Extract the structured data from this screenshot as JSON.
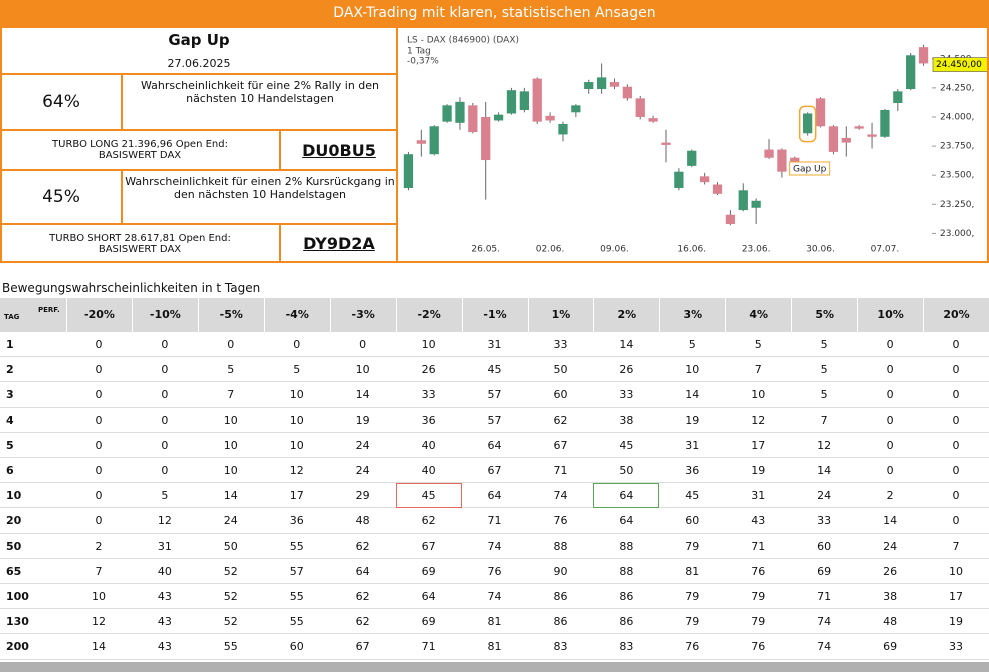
{
  "header": {
    "title": "DAX-Trading mit klaren, statistischen Ansagen"
  },
  "signal": {
    "title": "Gap Up",
    "date": "27.06.2025"
  },
  "long": {
    "probability": "64%",
    "text": "Wahrscheinlichkeit für eine 2% Rally in den nächsten 10 Handelstagen",
    "product": "TURBO LONG 21.396,96 Open End:",
    "underlying": "BASISWERT DAX",
    "code": "DU0BU5"
  },
  "short": {
    "probability": "45%",
    "text": "Wahrscheinlichkeit für einen 2% Kursrückgang in den nächsten 10 Handelstagen",
    "product": "TURBO SHORT 28.617,81 Open End:",
    "underlying": "BASISWERT DAX",
    "code": "DY9D2A"
  },
  "chart_data": {
    "type": "candlestick",
    "title": "LS - DAX (846900) (DAX)",
    "subtitle": "1 Tag",
    "change": "-0,37%",
    "categories": [
      null,
      null,
      null,
      null,
      null,
      null,
      "26.05.",
      null,
      null,
      null,
      null,
      "02.06.",
      null,
      null,
      null,
      null,
      "09.06.",
      null,
      null,
      null,
      null,
      null,
      "16.06.",
      null,
      null,
      null,
      null,
      "23.06.",
      null,
      null,
      null,
      null,
      "30.06.",
      null,
      null,
      null,
      null,
      "07.07.",
      null,
      null,
      null
    ],
    "open": [
      23390,
      23800,
      23680,
      23960,
      23950,
      24100,
      24000,
      23970,
      24030,
      24060,
      24330,
      24010,
      23850,
      24040,
      24240,
      24240,
      24300,
      24260,
      24160,
      23990,
      23780,
      23390,
      23580,
      23490,
      23420,
      23160,
      23200,
      23220,
      23720,
      23720,
      23650,
      23860,
      24160,
      23920,
      23820,
      23920,
      23850,
      23830,
      24120,
      24240,
      24600
    ],
    "high": [
      23700,
      23890,
      23930,
      24110,
      24170,
      24120,
      24130,
      24040,
      24250,
      24250,
      24340,
      24040,
      23960,
      24110,
      24320,
      24460,
      24330,
      24280,
      24180,
      24010,
      23890,
      23560,
      23720,
      23520,
      23440,
      23200,
      23430,
      23300,
      23810,
      23730,
      23660,
      24040,
      24170,
      23930,
      23920,
      23930,
      23950,
      24070,
      24240,
      24550,
      24620
    ],
    "low": [
      23370,
      23660,
      23670,
      23950,
      23890,
      23860,
      23290,
      23960,
      24020,
      24040,
      23940,
      23950,
      23790,
      24000,
      24200,
      24200,
      24240,
      24140,
      23980,
      23950,
      23610,
      23370,
      23570,
      23420,
      23330,
      23070,
      23190,
      23080,
      23640,
      23480,
      23600,
      23840,
      23910,
      23680,
      23660,
      23890,
      23730,
      23820,
      24050,
      24230,
      24440
    ],
    "close": [
      23680,
      23770,
      23920,
      24100,
      24130,
      23870,
      23630,
      24020,
      24230,
      24220,
      23960,
      23970,
      23940,
      24100,
      24300,
      24340,
      24260,
      24160,
      24000,
      23960,
      23760,
      23530,
      23710,
      23440,
      23340,
      23080,
      23370,
      23280,
      23650,
      23530,
      23610,
      24030,
      23920,
      23700,
      23780,
      23900,
      23830,
      24060,
      24220,
      24530,
      24460
    ],
    "up_color": "#3f9670",
    "down_color": "#d9818e",
    "ylim": [
      22840,
      24730
    ],
    "yticks": [
      {
        "value": 23000,
        "label": "23.000,"
      },
      {
        "value": 23250,
        "label": "23.250,"
      },
      {
        "value": 23500,
        "label": "23.500,"
      },
      {
        "value": 23750,
        "label": "23.750,"
      },
      {
        "value": 24000,
        "label": "24.000,"
      },
      {
        "value": 24250,
        "label": "24.250,"
      },
      {
        "value": 24500,
        "label": "24.500,"
      }
    ],
    "last_price": {
      "value": 24450,
      "label": "24.450,00"
    },
    "annotation": "Gap Up"
  },
  "table": {
    "title": "Bewegungswahrscheinlichkeiten in t Tagen",
    "corner": [
      "TAG",
      "PERF."
    ],
    "columns": [
      "-20%",
      "-10%",
      "-5%",
      "-4%",
      "-3%",
      "-2%",
      "-1%",
      "1%",
      "2%",
      "3%",
      "4%",
      "5%",
      "10%",
      "20%"
    ],
    "rows": [
      {
        "tag": 1,
        "values": [
          0,
          0,
          0,
          0,
          0,
          10,
          31,
          33,
          14,
          5,
          5,
          5,
          0,
          0
        ]
      },
      {
        "tag": 2,
        "values": [
          0,
          0,
          5,
          5,
          10,
          26,
          45,
          50,
          26,
          10,
          7,
          5,
          0,
          0
        ]
      },
      {
        "tag": 3,
        "values": [
          0,
          0,
          7,
          10,
          14,
          33,
          57,
          60,
          33,
          14,
          10,
          5,
          0,
          0
        ]
      },
      {
        "tag": 4,
        "values": [
          0,
          0,
          10,
          10,
          19,
          36,
          57,
          62,
          38,
          19,
          12,
          7,
          0,
          0
        ]
      },
      {
        "tag": 5,
        "values": [
          0,
          0,
          10,
          10,
          24,
          40,
          64,
          67,
          45,
          31,
          17,
          12,
          0,
          0
        ]
      },
      {
        "tag": 6,
        "values": [
          0,
          0,
          10,
          12,
          24,
          40,
          67,
          71,
          50,
          36,
          19,
          14,
          0,
          0
        ]
      },
      {
        "tag": 10,
        "values": [
          0,
          5,
          14,
          17,
          29,
          45,
          64,
          74,
          64,
          45,
          31,
          24,
          2,
          0
        ]
      },
      {
        "tag": 20,
        "values": [
          0,
          12,
          24,
          36,
          48,
          62,
          71,
          76,
          64,
          60,
          43,
          33,
          14,
          0
        ]
      },
      {
        "tag": 50,
        "values": [
          2,
          31,
          50,
          55,
          62,
          67,
          74,
          88,
          88,
          79,
          71,
          60,
          24,
          7
        ]
      },
      {
        "tag": 65,
        "values": [
          7,
          40,
          52,
          57,
          64,
          69,
          76,
          90,
          88,
          81,
          76,
          69,
          26,
          10
        ]
      },
      {
        "tag": 100,
        "values": [
          10,
          43,
          52,
          55,
          62,
          64,
          74,
          86,
          86,
          79,
          79,
          71,
          38,
          17
        ]
      },
      {
        "tag": 130,
        "values": [
          12,
          43,
          52,
          55,
          62,
          69,
          81,
          86,
          86,
          79,
          79,
          74,
          48,
          19
        ]
      },
      {
        "tag": 200,
        "values": [
          14,
          43,
          55,
          60,
          67,
          71,
          81,
          83,
          83,
          76,
          76,
          74,
          69,
          33
        ]
      }
    ],
    "highlights": [
      {
        "row": 6,
        "column": 5,
        "color": "#e06a5e"
      },
      {
        "row": 6,
        "column": 8,
        "color": "#5aa85a"
      }
    ]
  }
}
